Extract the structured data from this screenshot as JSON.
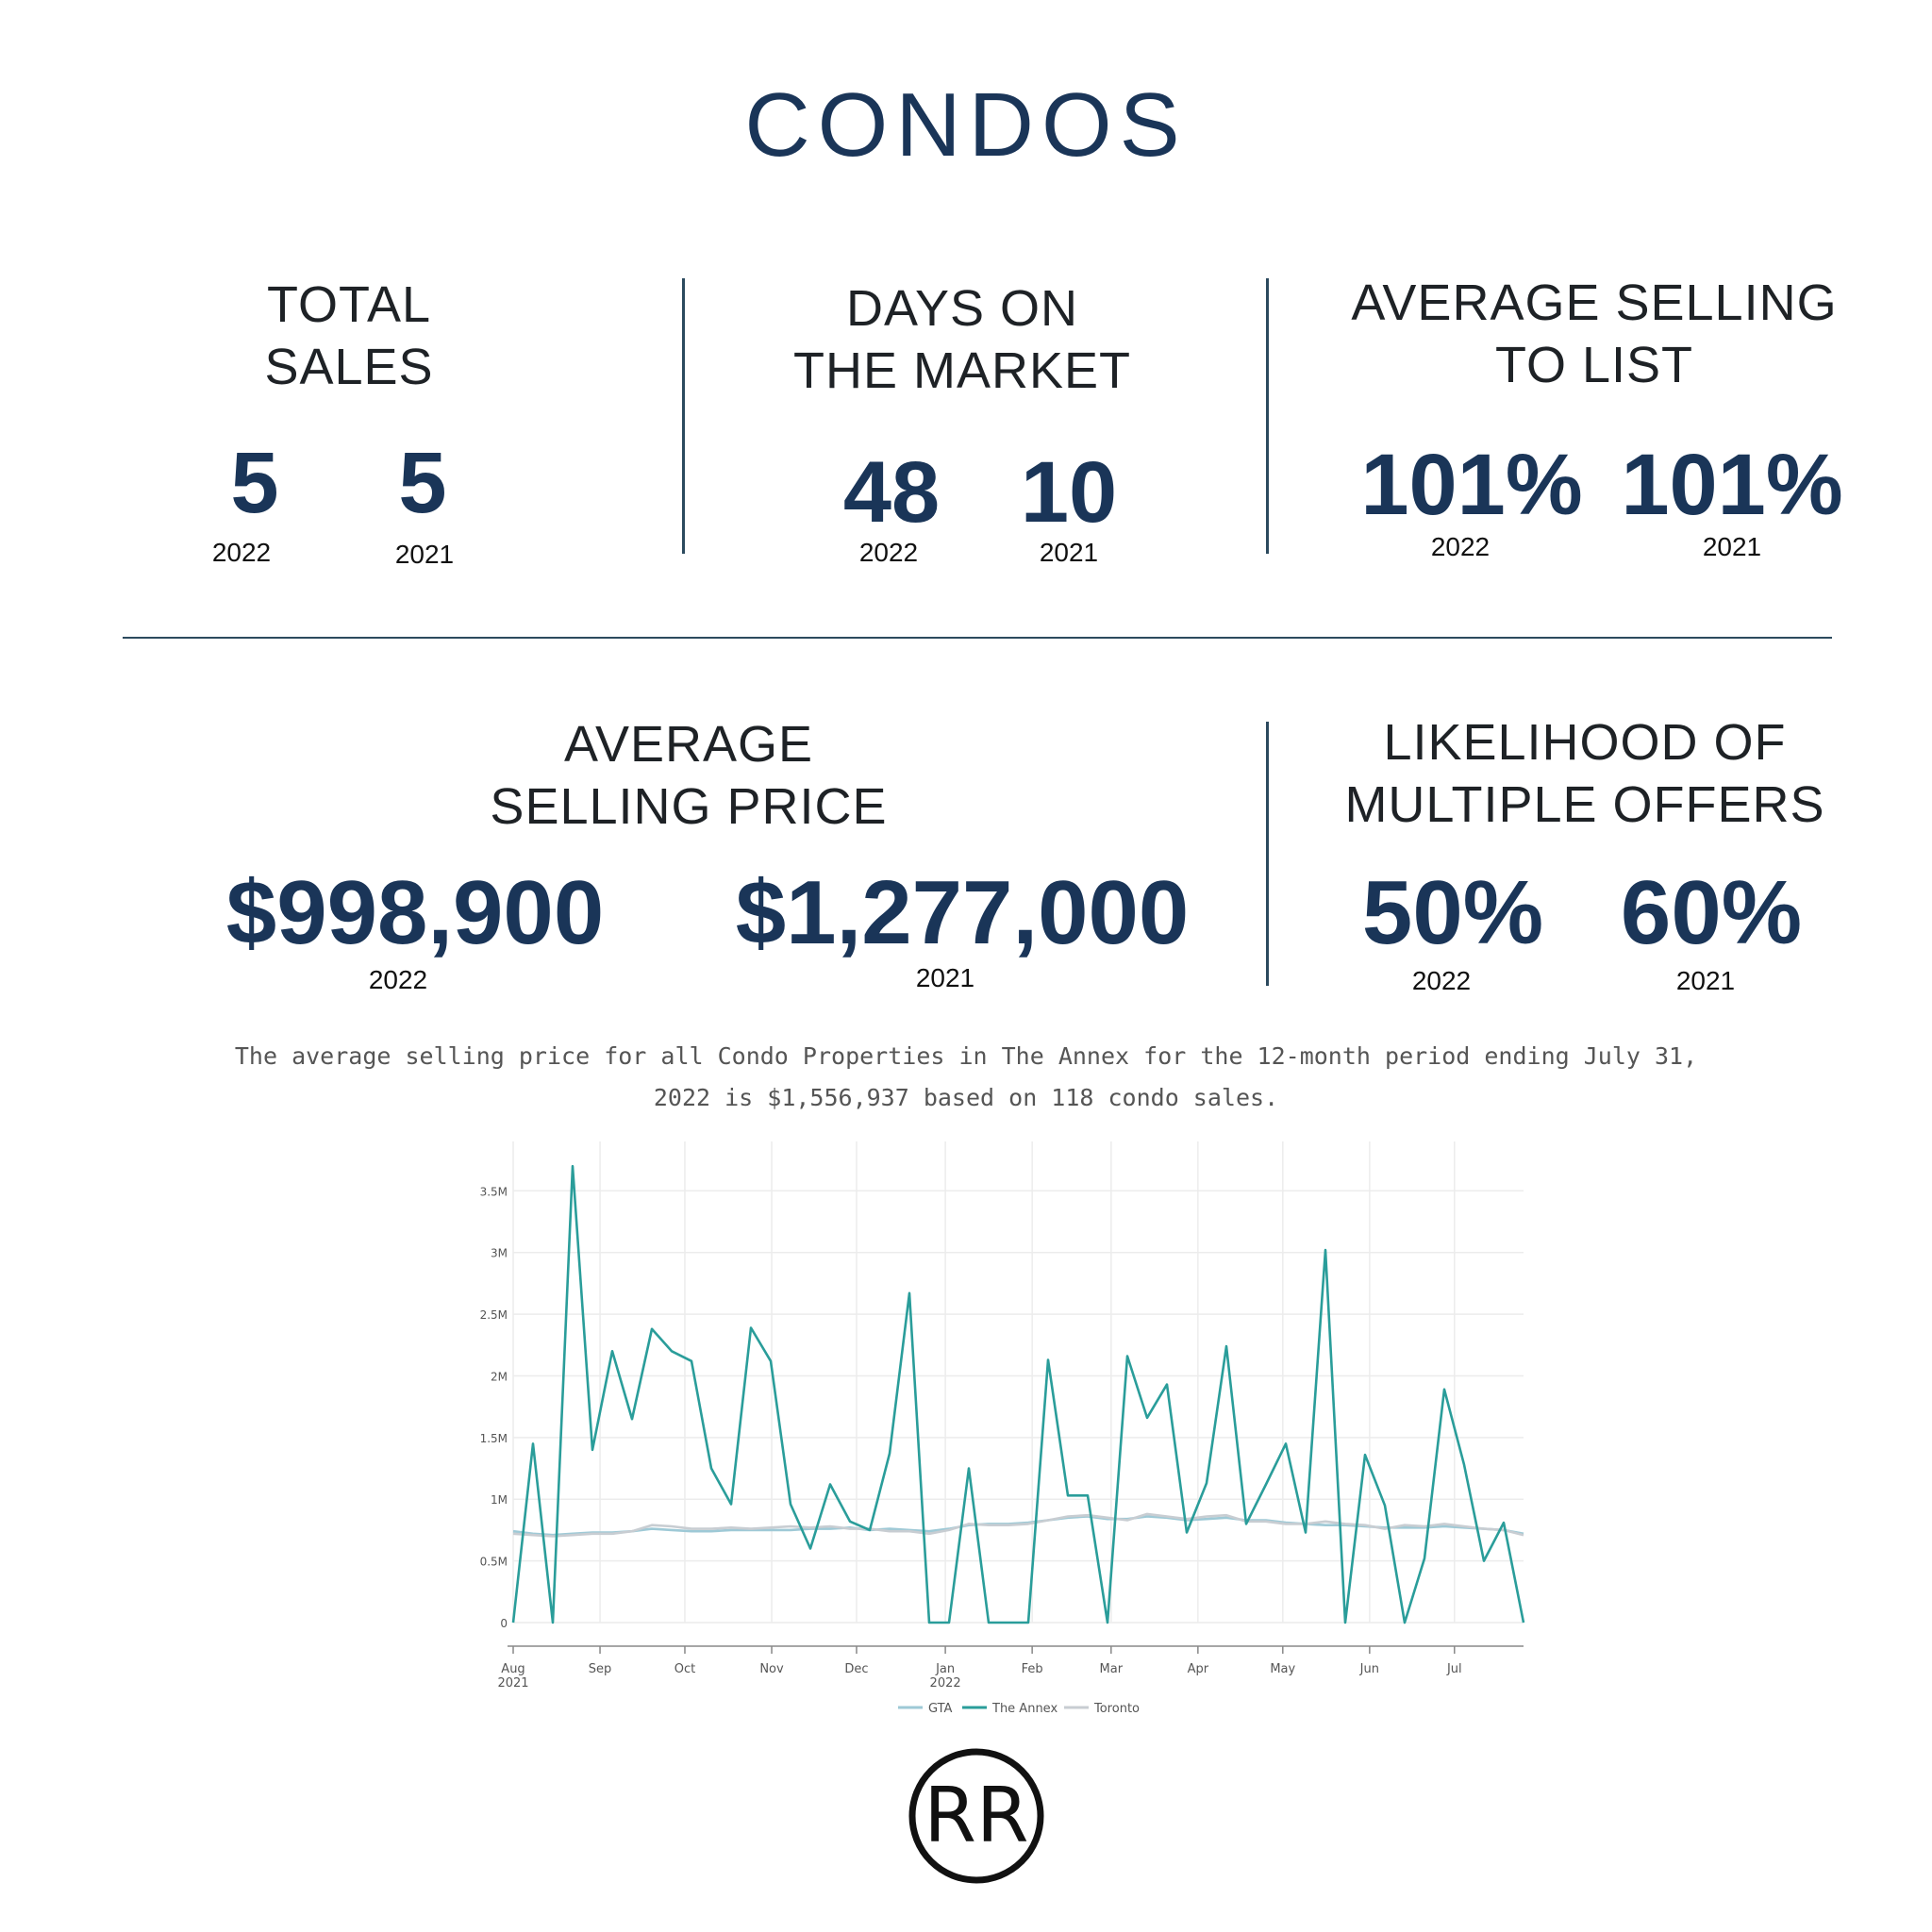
{
  "title": "CONDOS",
  "stats_top": [
    {
      "heading_1": "TOTAL",
      "heading_2": "SALES",
      "v2022": "5",
      "v2021": "5",
      "y2022": "2022",
      "y2021": "2021"
    },
    {
      "heading_1": "DAYS ON",
      "heading_2": "THE MARKET",
      "v2022": "48",
      "v2021": "10",
      "y2022": "2022",
      "y2021": "2021"
    },
    {
      "heading_1": "AVERAGE SELLING",
      "heading_2": "TO LIST",
      "v2022": "101%",
      "v2021": "101%",
      "y2022": "2022",
      "y2021": "2021"
    }
  ],
  "stats_bottom": [
    {
      "heading_1": "AVERAGE",
      "heading_2": "SELLING PRICE",
      "v2022": "$998,900",
      "v2021": "$1,277,000",
      "y2022": "2022",
      "y2021": "2021"
    },
    {
      "heading_1": "LIKELIHOOD OF",
      "heading_2": "MULTIPLE OFFERS",
      "v2022": "50%",
      "v2021": "60%",
      "y2022": "2022",
      "y2021": "2021"
    }
  ],
  "caption_line1": "The average selling price for all Condo Properties in The Annex for the 12-month period ending July 31,",
  "caption_line2": "2022 is $1,556,937 based on 118 condo sales.",
  "logo_text": "RR",
  "colors": {
    "navy": "#1a3558",
    "annex": "#2a9d9a",
    "gta": "#9ec9d6",
    "toronto": "#c8cdd2"
  },
  "chart_data": {
    "type": "line",
    "ylim": [
      0,
      3900000
    ],
    "y_ticks": [
      0,
      500000,
      1000000,
      1500000,
      2000000,
      2500000,
      3000000,
      3500000
    ],
    "y_tick_labels": [
      "0",
      "0.5M",
      "1M",
      "1.5M",
      "2M",
      "2.5M",
      "3M",
      "3.5M"
    ],
    "x_ticks": [
      {
        "label": "Aug",
        "sub": "2021",
        "week": 0
      },
      {
        "label": "Sep",
        "sub": "",
        "week": 4.4
      },
      {
        "label": "Oct",
        "sub": "",
        "week": 8.7
      },
      {
        "label": "Nov",
        "sub": "",
        "week": 13.1
      },
      {
        "label": "Dec",
        "sub": "",
        "week": 17.4
      },
      {
        "label": "Jan",
        "sub": "2022",
        "week": 21.9
      },
      {
        "label": "Feb",
        "sub": "",
        "week": 26.3
      },
      {
        "label": "Mar",
        "sub": "",
        "week": 30.3
      },
      {
        "label": "Apr",
        "sub": "",
        "week": 34.7
      },
      {
        "label": "May",
        "sub": "",
        "week": 39.0
      },
      {
        "label": "Jun",
        "sub": "",
        "week": 43.4
      },
      {
        "label": "Jul",
        "sub": "",
        "week": 47.7
      }
    ],
    "x_max_week": 51.2,
    "legend": [
      "GTA",
      "The Annex",
      "Toronto"
    ],
    "series": [
      {
        "name": "The Annex",
        "color": "#2a9d9a",
        "values": [
          0,
          1450000,
          0,
          3700000,
          1400000,
          2200000,
          1650000,
          2380000,
          2200000,
          2120000,
          1250000,
          960000,
          2390000,
          2120000,
          960000,
          600000,
          1120000,
          820000,
          750000,
          1370000,
          2670000,
          0,
          0,
          1250000,
          0,
          0,
          0,
          2130000,
          1030000,
          1030000,
          0,
          2160000,
          1660000,
          1930000,
          730000,
          1130000,
          2240000,
          800000,
          1120000,
          1450000,
          730000,
          3020000,
          0,
          1360000,
          950000,
          0,
          520000,
          1890000,
          1280000,
          500000,
          810000,
          0
        ]
      },
      {
        "name": "GTA",
        "color": "#9ec9d6",
        "values": [
          740000,
          720000,
          710000,
          720000,
          730000,
          730000,
          740000,
          760000,
          750000,
          740000,
          740000,
          750000,
          750000,
          750000,
          750000,
          760000,
          760000,
          770000,
          750000,
          760000,
          750000,
          740000,
          760000,
          790000,
          800000,
          800000,
          810000,
          830000,
          850000,
          860000,
          840000,
          840000,
          860000,
          850000,
          830000,
          840000,
          850000,
          830000,
          830000,
          810000,
          800000,
          790000,
          790000,
          780000,
          770000,
          770000,
          770000,
          780000,
          770000,
          760000,
          750000,
          720000
        ]
      },
      {
        "name": "Toronto",
        "color": "#c8cdd2",
        "values": [
          720000,
          710000,
          700000,
          710000,
          720000,
          720000,
          740000,
          790000,
          780000,
          760000,
          760000,
          770000,
          760000,
          770000,
          780000,
          770000,
          780000,
          760000,
          760000,
          740000,
          740000,
          720000,
          750000,
          800000,
          790000,
          790000,
          800000,
          830000,
          860000,
          870000,
          850000,
          830000,
          880000,
          860000,
          840000,
          860000,
          870000,
          820000,
          820000,
          800000,
          800000,
          820000,
          800000,
          790000,
          760000,
          790000,
          780000,
          800000,
          780000,
          760000,
          750000,
          710000
        ]
      }
    ]
  }
}
